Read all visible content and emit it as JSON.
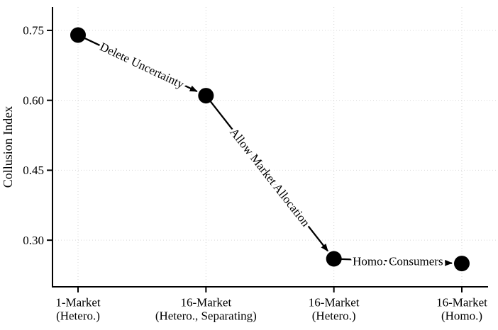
{
  "figure": {
    "description": "Line-connected scatter plot of Collusion Index across four market counterfactuals with arrow annotations"
  },
  "chart_data": {
    "type": "scatter",
    "title": "",
    "xlabel": "",
    "ylabel": "Collusion Index",
    "ylim": [
      0.2,
      0.8
    ],
    "yticks": [
      0.3,
      0.45,
      0.6,
      0.75
    ],
    "ytick_labels": [
      "0.30",
      "0.45",
      "0.60",
      "0.75"
    ],
    "grid": true,
    "legend": "none",
    "categories": [
      {
        "line1": "1-Market",
        "line2": "(Hetero.)"
      },
      {
        "line1": "16-Market",
        "line2": "(Hetero., Separating)"
      },
      {
        "line1": "16-Market",
        "line2": "(Hetero.)"
      },
      {
        "line1": "16-Market",
        "line2": "(Homo.)"
      }
    ],
    "values": [
      0.74,
      0.61,
      0.26,
      0.25
    ],
    "annotations": [
      {
        "text": "Delete Uncertainty",
        "from": 0,
        "to": 1
      },
      {
        "text": "Allow Market Allocation",
        "from": 1,
        "to": 2
      },
      {
        "text": "Homo. Consumers",
        "from": 2,
        "to": 3
      }
    ],
    "colors": {
      "marker": "#000000",
      "line": "#000000",
      "axis": "#000000",
      "grid": "#d6d6d6",
      "text": "#000000",
      "background": "#ffffff",
      "annotation_halo": "#ffffff"
    }
  }
}
